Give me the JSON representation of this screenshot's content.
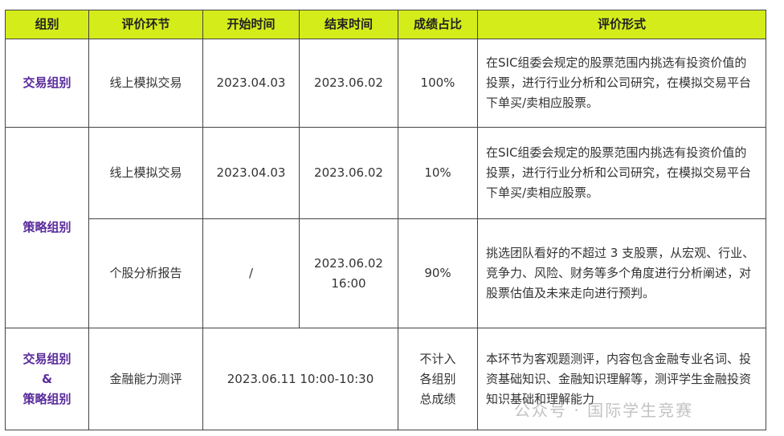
{
  "header": [
    "组别",
    "评价环节",
    "开始时间",
    "结束时间",
    "成绩占比",
    "评价形式"
  ],
  "colors": {
    "header_bg": "#d4ec1a",
    "group_text": "#5a2b9c"
  },
  "rows": {
    "r1": {
      "group": "交易组别",
      "stage": "线上模拟交易",
      "start": "2023.04.03",
      "end": "2023.06.02",
      "weight": "100%",
      "form": "在SIC组委会规定的股票范围内挑选有投资价值的投票，进行行业分析和公司研究，在模拟交易平台下单买/卖相应股票。"
    },
    "r2": {
      "group": "策略组别",
      "stage": "线上模拟交易",
      "start": "2023.04.03",
      "end": "2023.06.02",
      "weight": "10%",
      "form": "在SIC组委会规定的股票范围内挑选有投资价值的投票，进行行业分析和公司研究，在模拟交易平台下单买/卖相应股票。"
    },
    "r3": {
      "stage": "个股分析报告",
      "start": "/",
      "end_date": "2023.06.02",
      "end_time": "16:00",
      "weight": "90%",
      "form": "挑选团队看好的不超过 3 支股票，从宏观、行业、竞争力、风险、财务等多个角度进行分析阐述，对股票估值及未来走向进行预判。"
    },
    "r4": {
      "group_line1": "交易组别",
      "group_line2": "&",
      "group_line3": "策略组别",
      "stage": "金融能力测评",
      "time": "2023.06.11 10:00-10:30",
      "weight_line1": "不计入",
      "weight_line2": "各组别",
      "weight_line3": "总成绩",
      "form": "本环节为客观题测评，内容包含金融专业名词、投资基础知识、金融知识理解等，测评学生金融投资知识基础和理解能力"
    }
  },
  "watermark": "公众号 · 国际学生竞赛"
}
